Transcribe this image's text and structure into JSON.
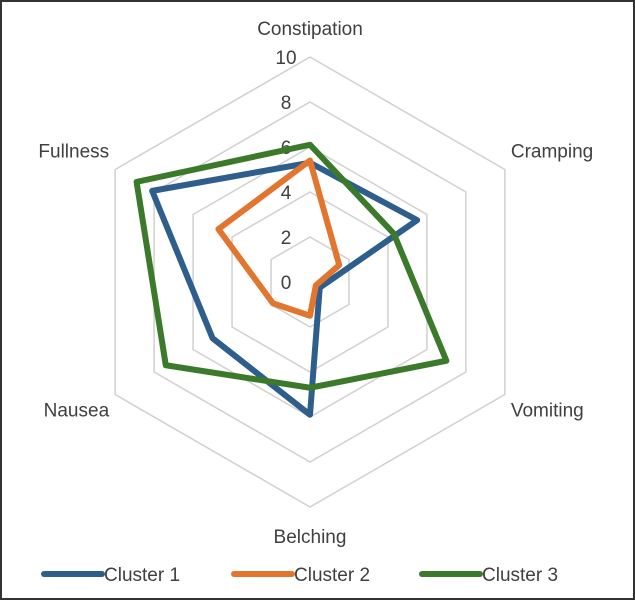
{
  "chart_data": {
    "type": "radar",
    "axes": [
      "Constipation",
      "Cramping",
      "Vomiting",
      "Belching",
      "Nausea",
      "Fullness"
    ],
    "rlim": [
      0,
      10
    ],
    "ticks": [
      "0",
      "2",
      "4",
      "6",
      "8",
      "10"
    ],
    "grid": true,
    "legend": "bottom",
    "series": [
      {
        "name": "Cluster 1",
        "color": "#2e5f8c",
        "values": [
          5.3,
          5.5,
          0.5,
          5.9,
          5.0,
          8.1
        ]
      },
      {
        "name": "Cluster 2",
        "color": "#e2762f",
        "values": [
          5.4,
          1.5,
          0.3,
          1.5,
          1.9,
          4.7
        ]
      },
      {
        "name": "Cluster 3",
        "color": "#3b7a2a",
        "values": [
          6.1,
          4.3,
          7.0,
          4.7,
          7.4,
          8.9
        ]
      }
    ]
  }
}
